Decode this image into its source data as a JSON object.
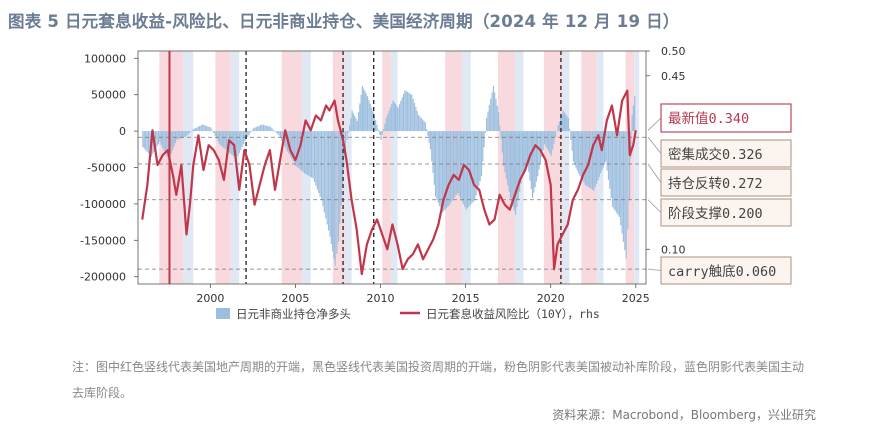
{
  "title": "图表 5   日元套息收益-风险比、日元非商业持仓、美国经济周期（2024 年 12 月 19 日）",
  "note": "注：图中红色竖线代表美国地产周期的开端，黑色竖线代表美国投资周期的开端，粉色阴影代表美国被动补库阶段，蓝色阴影代表美国主动去库阶段。",
  "source": "资料来源：Macrobond，Bloomberg，兴业研究",
  "chart_data": {
    "type": "bar+line",
    "title": "",
    "x_ticks": [
      "2000",
      "2005",
      "2010",
      "2015",
      "2020",
      "2025"
    ],
    "x_range": [
      1995.75,
      2025.6
    ],
    "left_axis": {
      "ticks": [
        100000,
        50000,
        0,
        -50000,
        -100000,
        -150000,
        -200000
      ],
      "labels": [
        "100000",
        "50000",
        "0",
        "-50000",
        "-100000",
        "-150000",
        "-200000"
      ],
      "range": [
        -210000,
        110000
      ]
    },
    "right_axis": {
      "ticks": [
        0.5,
        0.45,
        0.1
      ],
      "labels": [
        "0.50",
        "0.45",
        "0.10"
      ],
      "range": [
        0.03,
        0.5
      ]
    },
    "series": [
      {
        "name": "日元非商业持仓净多头",
        "type": "bar",
        "axis": "left",
        "color": "#9dbfdf",
        "points": [
          [
            1996.0,
            -22000
          ],
          [
            1996.5,
            -35000
          ],
          [
            1997.0,
            -15000
          ],
          [
            1997.5,
            -40000
          ],
          [
            1998.0,
            -12000
          ],
          [
            1998.5,
            -8000
          ],
          [
            1999.0,
            3000
          ],
          [
            1999.5,
            9000
          ],
          [
            2000.0,
            5000
          ],
          [
            2000.5,
            -18000
          ],
          [
            2001.0,
            -28000
          ],
          [
            2001.5,
            -38000
          ],
          [
            2002.0,
            -14000
          ],
          [
            2002.5,
            4000
          ],
          [
            2003.0,
            9000
          ],
          [
            2003.5,
            6000
          ],
          [
            2004.0,
            -6000
          ],
          [
            2004.5,
            -28000
          ],
          [
            2005.0,
            -48000
          ],
          [
            2005.5,
            -58000
          ],
          [
            2006.0,
            -65000
          ],
          [
            2006.5,
            -95000
          ],
          [
            2007.0,
            -145000
          ],
          [
            2007.3,
            -185000
          ],
          [
            2007.5,
            -152000
          ],
          [
            2007.8,
            -52000
          ],
          [
            2008.0,
            -12000
          ],
          [
            2008.3,
            28000
          ],
          [
            2008.6,
            14000
          ],
          [
            2008.9,
            62000
          ],
          [
            2009.2,
            48000
          ],
          [
            2009.6,
            22000
          ],
          [
            2010.0,
            -12000
          ],
          [
            2010.3,
            18000
          ],
          [
            2010.7,
            42000
          ],
          [
            2011.0,
            32000
          ],
          [
            2011.4,
            56000
          ],
          [
            2011.8,
            50000
          ],
          [
            2012.2,
            22000
          ],
          [
            2012.6,
            12000
          ],
          [
            2012.9,
            -25000
          ],
          [
            2013.2,
            -90000
          ],
          [
            2013.6,
            -112000
          ],
          [
            2014.0,
            -102000
          ],
          [
            2014.5,
            -85000
          ],
          [
            2015.0,
            -108000
          ],
          [
            2015.5,
            -95000
          ],
          [
            2015.9,
            -62000
          ],
          [
            2016.2,
            18000
          ],
          [
            2016.6,
            62000
          ],
          [
            2016.9,
            26000
          ],
          [
            2017.2,
            -48000
          ],
          [
            2017.6,
            -92000
          ],
          [
            2017.9,
            -115000
          ],
          [
            2018.3,
            -62000
          ],
          [
            2018.6,
            -44000
          ],
          [
            2018.9,
            -92000
          ],
          [
            2019.2,
            -62000
          ],
          [
            2019.6,
            -18000
          ],
          [
            2020.0,
            -34000
          ],
          [
            2020.4,
            8000
          ],
          [
            2020.7,
            28000
          ],
          [
            2021.0,
            18000
          ],
          [
            2021.3,
            -42000
          ],
          [
            2021.6,
            -58000
          ],
          [
            2022.0,
            -74000
          ],
          [
            2022.5,
            -82000
          ],
          [
            2022.9,
            -58000
          ],
          [
            2023.2,
            -42000
          ],
          [
            2023.6,
            -104000
          ],
          [
            2024.0,
            -118000
          ],
          [
            2024.4,
            -175000
          ],
          [
            2024.6,
            -95000
          ],
          [
            2024.75,
            22000
          ],
          [
            2024.9,
            48000
          ],
          [
            2025.0,
            12000
          ]
        ]
      },
      {
        "name": "日元套息收益风险比（10Y），rhs",
        "type": "line",
        "axis": "right",
        "color": "#c0364a",
        "points": [
          [
            1996.0,
            0.16
          ],
          [
            1996.3,
            0.23
          ],
          [
            1996.6,
            0.34
          ],
          [
            1996.9,
            0.27
          ],
          [
            1997.2,
            0.29
          ],
          [
            1997.5,
            0.3
          ],
          [
            1997.8,
            0.25
          ],
          [
            1998.0,
            0.21
          ],
          [
            1998.3,
            0.27
          ],
          [
            1998.6,
            0.13
          ],
          [
            1998.8,
            0.19
          ],
          [
            1999.0,
            0.27
          ],
          [
            1999.3,
            0.33
          ],
          [
            1999.6,
            0.26
          ],
          [
            1999.9,
            0.31
          ],
          [
            2000.2,
            0.3
          ],
          [
            2000.5,
            0.28
          ],
          [
            2000.8,
            0.24
          ],
          [
            2001.1,
            0.32
          ],
          [
            2001.4,
            0.31
          ],
          [
            2001.7,
            0.22
          ],
          [
            2002.0,
            0.3
          ],
          [
            2002.3,
            0.27
          ],
          [
            2002.6,
            0.19
          ],
          [
            2002.9,
            0.23
          ],
          [
            2003.2,
            0.27
          ],
          [
            2003.5,
            0.3
          ],
          [
            2003.8,
            0.22
          ],
          [
            2004.1,
            0.28
          ],
          [
            2004.4,
            0.34
          ],
          [
            2004.7,
            0.3
          ],
          [
            2005.0,
            0.28
          ],
          [
            2005.3,
            0.31
          ],
          [
            2005.6,
            0.36
          ],
          [
            2005.9,
            0.34
          ],
          [
            2006.2,
            0.37
          ],
          [
            2006.5,
            0.36
          ],
          [
            2006.8,
            0.39
          ],
          [
            2007.0,
            0.38
          ],
          [
            2007.3,
            0.4
          ],
          [
            2007.5,
            0.36
          ],
          [
            2007.8,
            0.32
          ],
          [
            2008.0,
            0.28
          ],
          [
            2008.3,
            0.2
          ],
          [
            2008.6,
            0.14
          ],
          [
            2008.9,
            0.05
          ],
          [
            2009.2,
            0.11
          ],
          [
            2009.5,
            0.14
          ],
          [
            2009.8,
            0.16
          ],
          [
            2010.1,
            0.13
          ],
          [
            2010.4,
            0.1
          ],
          [
            2010.7,
            0.15
          ],
          [
            2011.0,
            0.11
          ],
          [
            2011.3,
            0.06
          ],
          [
            2011.6,
            0.08
          ],
          [
            2011.9,
            0.09
          ],
          [
            2012.2,
            0.11
          ],
          [
            2012.5,
            0.08
          ],
          [
            2012.8,
            0.1
          ],
          [
            2013.1,
            0.12
          ],
          [
            2013.4,
            0.15
          ],
          [
            2013.7,
            0.2
          ],
          [
            2014.0,
            0.23
          ],
          [
            2014.3,
            0.25
          ],
          [
            2014.6,
            0.24
          ],
          [
            2014.9,
            0.27
          ],
          [
            2015.2,
            0.26
          ],
          [
            2015.5,
            0.23
          ],
          [
            2015.8,
            0.22
          ],
          [
            2016.1,
            0.18
          ],
          [
            2016.4,
            0.15
          ],
          [
            2016.7,
            0.16
          ],
          [
            2017.0,
            0.21
          ],
          [
            2017.3,
            0.19
          ],
          [
            2017.6,
            0.18
          ],
          [
            2017.9,
            0.21
          ],
          [
            2018.2,
            0.24
          ],
          [
            2018.5,
            0.26
          ],
          [
            2018.8,
            0.29
          ],
          [
            2019.1,
            0.31
          ],
          [
            2019.4,
            0.3
          ],
          [
            2019.7,
            0.28
          ],
          [
            2020.0,
            0.23
          ],
          [
            2020.2,
            0.06
          ],
          [
            2020.4,
            0.11
          ],
          [
            2020.7,
            0.13
          ],
          [
            2021.0,
            0.15
          ],
          [
            2021.3,
            0.2
          ],
          [
            2021.6,
            0.22
          ],
          [
            2021.9,
            0.25
          ],
          [
            2022.2,
            0.27
          ],
          [
            2022.5,
            0.31
          ],
          [
            2022.8,
            0.33
          ],
          [
            2023.0,
            0.3
          ],
          [
            2023.3,
            0.36
          ],
          [
            2023.6,
            0.39
          ],
          [
            2023.9,
            0.33
          ],
          [
            2024.2,
            0.4
          ],
          [
            2024.5,
            0.42
          ],
          [
            2024.65,
            0.29
          ],
          [
            2024.85,
            0.31
          ],
          [
            2025.0,
            0.34
          ]
        ]
      }
    ],
    "vertical_lines": {
      "red": [
        1997.6
      ],
      "black": [
        2002.1,
        2007.8,
        2009.6,
        2020.6
      ]
    },
    "shading": {
      "pink": [
        [
          1997.0,
          1998.4
        ],
        [
          2000.3,
          2001.2
        ],
        [
          2004.2,
          2005.4
        ],
        [
          2007.2,
          2007.9
        ],
        [
          2010.1,
          2010.6
        ],
        [
          2013.8,
          2014.8
        ],
        [
          2016.9,
          2017.9
        ],
        [
          2019.6,
          2020.7
        ],
        [
          2021.8,
          2022.7
        ],
        [
          2024.4,
          2024.9
        ]
      ],
      "blue": [
        [
          1998.4,
          1999.0
        ],
        [
          2001.2,
          2001.7
        ],
        [
          2005.4,
          2005.9
        ],
        [
          2007.9,
          2008.3
        ],
        [
          2010.6,
          2011.0
        ],
        [
          2014.8,
          2015.3
        ],
        [
          2017.9,
          2018.4
        ],
        [
          2020.7,
          2021.1
        ],
        [
          2022.7,
          2023.1
        ],
        [
          2024.9,
          2025.2
        ]
      ]
    },
    "reference_lines": [
      0.326,
      0.272,
      0.2,
      0.06
    ],
    "annotations": [
      {
        "label": "最新值",
        "value": "0.340",
        "style": "latest",
        "target": 0.34
      },
      {
        "label": "密集成交",
        "value": "0.326",
        "target": 0.326
      },
      {
        "label": "持仓反转",
        "value": "0.272",
        "target": 0.272
      },
      {
        "label": "阶段支撑",
        "value": "0.200",
        "target": 0.2
      },
      {
        "label": "carry触底",
        "value": "0.060",
        "target": 0.06
      }
    ],
    "legend_placement": "bottom",
    "grid": false
  }
}
